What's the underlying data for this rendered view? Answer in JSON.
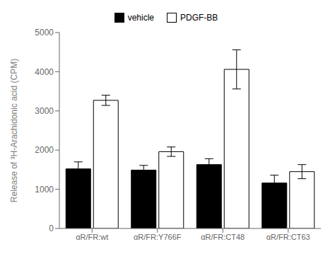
{
  "chart_data": {
    "type": "bar",
    "categories": [
      "αR/FR:wt",
      "αR/FR:Y766F",
      "αR/FR:CT48",
      "αR/FR:CT63"
    ],
    "series": [
      {
        "name": "vehicle",
        "color": "#000000",
        "values": [
          1520,
          1490,
          1630,
          1160
        ],
        "errors": [
          180,
          120,
          150,
          200
        ]
      },
      {
        "name": "PDGF-BB",
        "color": "#ffffff",
        "values": [
          3270,
          1960,
          4060,
          1450
        ],
        "errors": [
          130,
          120,
          500,
          180
        ]
      }
    ],
    "ylabel": "Release of ³H-Arachidonic acid (CPM)",
    "ylim": [
      0,
      5000
    ],
    "yticks": [
      0,
      1000,
      2000,
      3000,
      4000,
      5000
    ],
    "grid": false,
    "legend": "top"
  }
}
